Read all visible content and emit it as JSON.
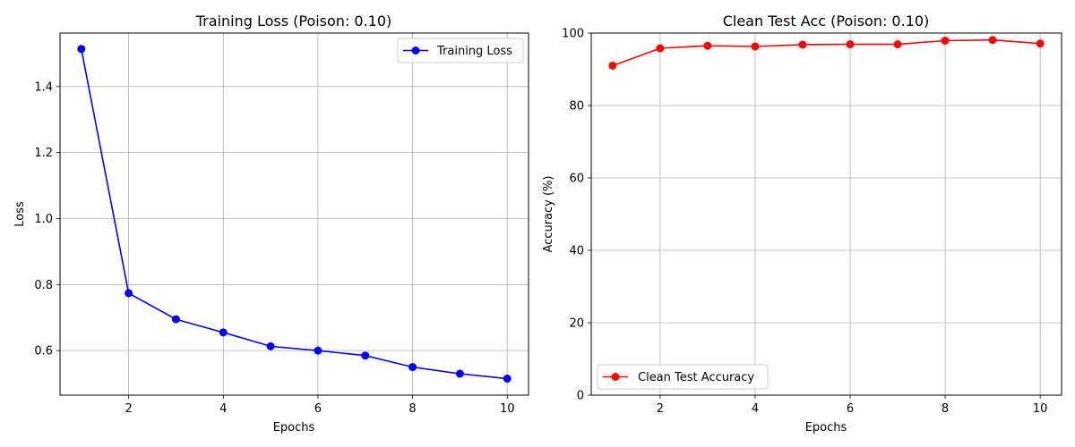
{
  "chart_data": [
    {
      "type": "line",
      "title": "Training Loss (Poison: 0.10)",
      "xlabel": "Epochs",
      "ylabel": "Loss",
      "xlim": [
        0.55,
        10.45
      ],
      "ylim": [
        0.465,
        1.562
      ],
      "xticks": [
        2,
        4,
        6,
        8,
        10
      ],
      "yticks": [
        0.6,
        0.8,
        1.0,
        1.2,
        1.4
      ],
      "ytick_labels": [
        "0.6",
        "0.8",
        "1.0",
        "1.2",
        "1.4"
      ],
      "xtick_labels": [
        "2",
        "4",
        "6",
        "8",
        "10"
      ],
      "grid": true,
      "legend": "upper-right",
      "series": [
        {
          "name": "Training Loss",
          "color": "#0000ff",
          "marker": "circle",
          "x": [
            1,
            2,
            3,
            4,
            5,
            6,
            7,
            8,
            9,
            10
          ],
          "y": [
            1.514,
            0.774,
            0.695,
            0.655,
            0.613,
            0.6,
            0.585,
            0.55,
            0.53,
            0.515
          ]
        }
      ]
    },
    {
      "type": "line",
      "title": "Clean Test Acc (Poison: 0.10)",
      "xlabel": "Epochs",
      "ylabel": "Accuracy (%)",
      "xlim": [
        0.55,
        10.45
      ],
      "ylim": [
        0,
        100
      ],
      "xticks": [
        2,
        4,
        6,
        8,
        10
      ],
      "yticks": [
        0,
        20,
        40,
        60,
        80,
        100
      ],
      "ytick_labels": [
        "0",
        "20",
        "40",
        "60",
        "80",
        "100"
      ],
      "xtick_labels": [
        "2",
        "4",
        "6",
        "8",
        "10"
      ],
      "grid": true,
      "legend": "lower-left",
      "series": [
        {
          "name": "Clean Test Accuracy",
          "color": "#ff0000",
          "marker": "circle",
          "x": [
            1,
            2,
            3,
            4,
            5,
            6,
            7,
            8,
            9,
            10
          ],
          "y": [
            91.0,
            95.8,
            96.5,
            96.3,
            96.8,
            96.9,
            96.9,
            97.9,
            98.1,
            97.1
          ]
        }
      ]
    }
  ]
}
